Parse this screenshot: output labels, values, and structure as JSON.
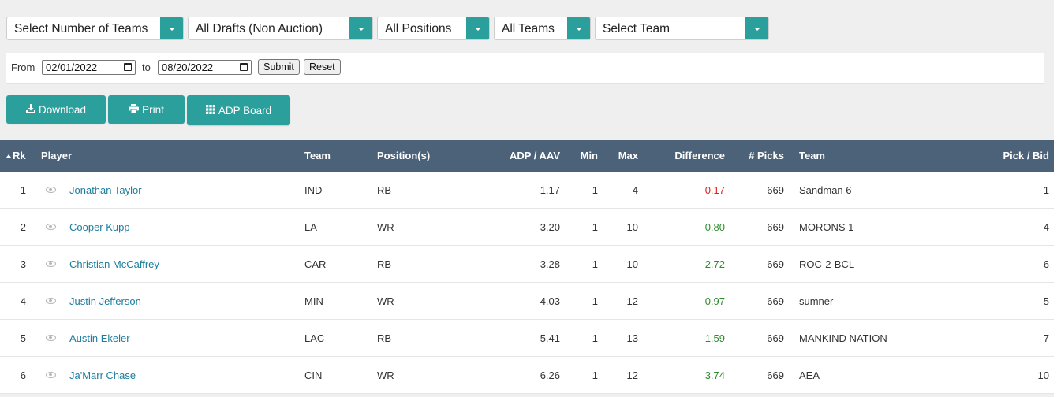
{
  "filters": {
    "num_teams": "Select Number of Teams",
    "draft_type": "All Drafts (Non Auction)",
    "positions": "All Positions",
    "teams": "All Teams",
    "team": "Select Team"
  },
  "datebar": {
    "from_label": "From",
    "from_value": "02/01/2022",
    "to_label": "to",
    "to_value": "08/20/2022",
    "submit_label": "Submit",
    "reset_label": "Reset"
  },
  "actions": {
    "download_label": "Download",
    "print_label": "Print",
    "adp_board_label": "ADP Board"
  },
  "table": {
    "headers": {
      "rank": "Rk",
      "player": "Player",
      "team": "Team",
      "positions": "Position(s)",
      "adp": "ADP / AAV",
      "min": "Min",
      "max": "Max",
      "difference": "Difference",
      "picks": "# Picks",
      "draft_team": "Team",
      "pick_bid": "Pick / Bid"
    },
    "rows": [
      {
        "rank": "1",
        "player": "Jonathan Taylor",
        "team": "IND",
        "pos": "RB",
        "adp": "1.17",
        "min": "1",
        "max": "4",
        "diff": "-0.17",
        "picks": "669",
        "draft_team": "Sandman 6",
        "pick": "1"
      },
      {
        "rank": "2",
        "player": "Cooper Kupp",
        "team": "LA",
        "pos": "WR",
        "adp": "3.20",
        "min": "1",
        "max": "10",
        "diff": "0.80",
        "picks": "669",
        "draft_team": "MORONS 1",
        "pick": "4"
      },
      {
        "rank": "3",
        "player": "Christian McCaffrey",
        "team": "CAR",
        "pos": "RB",
        "adp": "3.28",
        "min": "1",
        "max": "10",
        "diff": "2.72",
        "picks": "669",
        "draft_team": "ROC-2-BCL",
        "pick": "6"
      },
      {
        "rank": "4",
        "player": "Justin Jefferson",
        "team": "MIN",
        "pos": "WR",
        "adp": "4.03",
        "min": "1",
        "max": "12",
        "diff": "0.97",
        "picks": "669",
        "draft_team": "sumner",
        "pick": "5"
      },
      {
        "rank": "5",
        "player": "Austin Ekeler",
        "team": "LAC",
        "pos": "RB",
        "adp": "5.41",
        "min": "1",
        "max": "13",
        "diff": "1.59",
        "picks": "669",
        "draft_team": "MANKIND NATION",
        "pick": "7"
      },
      {
        "rank": "6",
        "player": "Ja'Marr Chase",
        "team": "CIN",
        "pos": "WR",
        "adp": "6.26",
        "min": "1",
        "max": "12",
        "diff": "3.74",
        "picks": "669",
        "draft_team": "AEA",
        "pick": "10"
      }
    ]
  },
  "colors": {
    "accent": "#2a9f9b",
    "header_bg": "#4b6279",
    "link": "#1a7c9e",
    "negative": "#e02020",
    "positive": "#2e8b2e"
  }
}
